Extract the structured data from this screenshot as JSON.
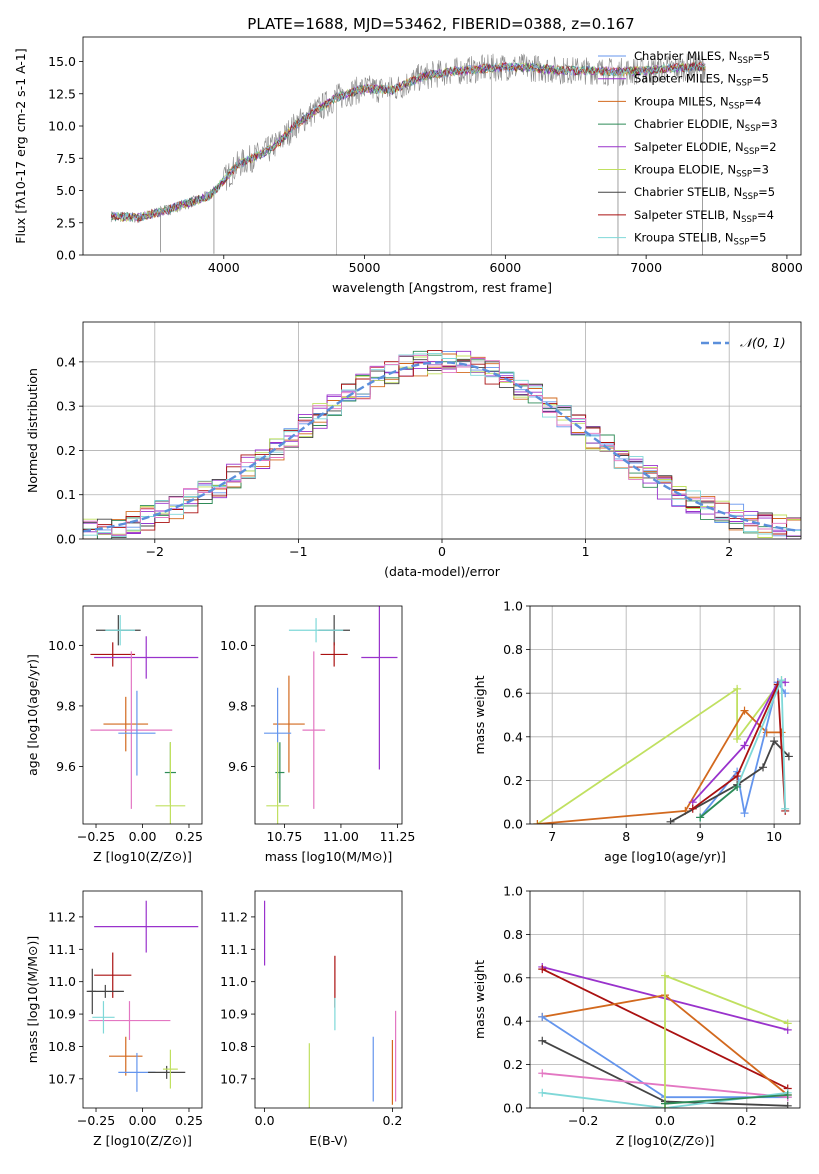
{
  "figure": {
    "title": "PLATE=1688, MJD=53462, FIBERID=0388, z=0.167"
  },
  "colors": {
    "Chabrier MILES": "#6495ed",
    "Salpeter MILES": "#9932cc",
    "Kroupa MILES": "#d2691e",
    "Chabrier ELODIE": "#2e8b57",
    "Salpeter ELODIE": "#9932cc",
    "Kroupa ELODIE": "#c0e060",
    "Chabrier STELIB": "#444444",
    "Salpeter STELIB": "#aa1111",
    "Kroupa STELIB": "#7fd8d8",
    "pink": "#e377c2",
    "gauss": "#5b8fdb",
    "data": "#888888"
  },
  "chart_data": [
    {
      "id": "spectrum",
      "type": "line",
      "xlabel": "wavelength [Angstrom, rest frame]",
      "ylabel": "Flux [f$_\\lambda$10$^{-17}$ erg cm$^{-2}$ s$^{-1}$ A$^{-1}$]",
      "xlim": [
        3000,
        8100
      ],
      "ylim": [
        0,
        16.9
      ],
      "xticks": [
        4000,
        5000,
        6000,
        7000,
        8000
      ],
      "yticks": [
        0.0,
        2.5,
        5.0,
        7.5,
        10.0,
        12.5,
        15.0
      ],
      "ytick_labels": [
        "0.0",
        "2.5",
        "5.0",
        "7.5",
        "10.0",
        "12.5",
        "15.0"
      ],
      "legend_position": "top-right",
      "legend": [
        {
          "name": "Chabrier MILES, N",
          "sub": "SSP",
          "val": "=5",
          "color": "#6495ed"
        },
        {
          "name": "Salpeter MILES, N",
          "sub": "SSP",
          "val": "=5",
          "color": "#9932cc"
        },
        {
          "name": "Kroupa MILES, N",
          "sub": "SSP",
          "val": "=4",
          "color": "#d2691e"
        },
        {
          "name": "Chabrier ELODIE, N",
          "sub": "SSP",
          "val": "=3",
          "color": "#2e8b57"
        },
        {
          "name": "Salpeter ELODIE, N",
          "sub": "SSP",
          "val": "=2",
          "color": "#9932cc"
        },
        {
          "name": "Kroupa ELODIE, N",
          "sub": "SSP",
          "val": "=3",
          "color": "#c0e060"
        },
        {
          "name": "Chabrier STELIB, N",
          "sub": "SSP",
          "val": "=5",
          "color": "#444444"
        },
        {
          "name": "Salpeter STELIB, N",
          "sub": "SSP",
          "val": "=4",
          "color": "#aa1111"
        },
        {
          "name": "Kroupa STELIB, N",
          "sub": "SSP",
          "val": "=5",
          "color": "#7fd8d8"
        }
      ],
      "model_trend": [
        [
          3200,
          3.0
        ],
        [
          3400,
          2.9
        ],
        [
          3600,
          3.5
        ],
        [
          3800,
          4.2
        ],
        [
          3900,
          4.6
        ],
        [
          4000,
          5.8
        ],
        [
          4100,
          7.0
        ],
        [
          4200,
          7.5
        ],
        [
          4300,
          8.0
        ],
        [
          4400,
          8.8
        ],
        [
          4500,
          10.0
        ],
        [
          4600,
          10.8
        ],
        [
          4700,
          11.5
        ],
        [
          4800,
          12.2
        ],
        [
          4900,
          12.6
        ],
        [
          5000,
          12.9
        ],
        [
          5200,
          12.8
        ],
        [
          5400,
          13.8
        ],
        [
          5600,
          14.2
        ],
        [
          5800,
          14.4
        ],
        [
          6000,
          14.6
        ],
        [
          6200,
          14.5
        ],
        [
          6400,
          14.3
        ],
        [
          6600,
          14.3
        ],
        [
          6800,
          14.2
        ],
        [
          7000,
          14.3
        ],
        [
          7200,
          14.5
        ],
        [
          7400,
          14.6
        ]
      ],
      "dips": [
        [
          3550,
          0.2
        ],
        [
          3930,
          0.1
        ],
        [
          6800,
          0.0
        ],
        [
          7400,
          0.0
        ]
      ],
      "spikes": [
        [
          4800,
          0.0
        ],
        [
          5180,
          0.0
        ],
        [
          5900,
          0.0
        ]
      ]
    },
    {
      "id": "residuals",
      "type": "line",
      "xlabel": "(data-model)/error",
      "ylabel": "Normed distribution",
      "xlim": [
        -2.5,
        2.5
      ],
      "ylim": [
        0,
        0.49
      ],
      "xticks": [
        -2,
        -1,
        0,
        1,
        2
      ],
      "xtick_labels": [
        "−2",
        "−1",
        "0",
        "1",
        "2"
      ],
      "yticks": [
        0.0,
        0.1,
        0.2,
        0.3,
        0.4
      ],
      "ytick_labels": [
        "0.0",
        "0.1",
        "0.2",
        "0.3",
        "0.4"
      ],
      "legend_label": "𝒩(0, 1)",
      "legend_position": "top-right",
      "bin_width": 0.1
    },
    {
      "id": "age_vs_Z",
      "type": "scatter",
      "xlabel": "Z [log$_{10}$($Z/Z_\\odot$)]",
      "ylabel": "age  [log$_{10}$($age/yr$)]",
      "xlim": [
        -0.32,
        0.32
      ],
      "ylim": [
        9.41,
        10.13
      ],
      "xticks": [
        -0.25,
        0.0,
        0.25
      ],
      "xtick_labels": [
        "−0.25",
        "0.00",
        "0.25"
      ],
      "yticks": [
        9.6,
        9.8,
        10.0
      ],
      "ytick_labels": [
        "9.6",
        "9.8",
        "10.0"
      ],
      "points": [
        {
          "x": -0.13,
          "y": 10.05,
          "xerr": 0.12,
          "yerr": 0.05,
          "color": "#444444"
        },
        {
          "x": -0.12,
          "y": 10.05,
          "xerr": 0.08,
          "yerr": 0.05,
          "color": "#7fd8d8"
        },
        {
          "x": -0.16,
          "y": 9.97,
          "xerr": 0.12,
          "yerr": 0.04,
          "color": "#aa1111"
        },
        {
          "x": 0.02,
          "y": 9.96,
          "xerr": 0.28,
          "yerr": 0.07,
          "color": "#9932cc"
        },
        {
          "x": -0.09,
          "y": 9.74,
          "xerr": 0.12,
          "yerr": 0.09,
          "color": "#d2691e"
        },
        {
          "x": -0.06,
          "y": 9.72,
          "xerr": 0.22,
          "yerr": 0.26,
          "color": "#e377c2"
        },
        {
          "x": -0.03,
          "y": 9.71,
          "xerr": 0.1,
          "yerr": 0.14,
          "color": "#6495ed"
        },
        {
          "x": 0.15,
          "y": 9.58,
          "xerr": 0.03,
          "yerr": 0.1,
          "color": "#2e8b57"
        },
        {
          "x": 0.15,
          "y": 9.47,
          "xerr": 0.08,
          "yerr": 0.21,
          "color": "#c0e060"
        }
      ]
    },
    {
      "id": "age_vs_mass",
      "type": "scatter",
      "xlabel": "mass [log$_{10}$($M/M_\\odot$)]",
      "ylabel": "",
      "xlim": [
        10.62,
        11.27
      ],
      "ylim": [
        9.41,
        10.13
      ],
      "xticks": [
        10.75,
        11.0,
        11.25
      ],
      "xtick_labels": [
        "10.75",
        "11.00",
        "11.25"
      ],
      "yticks": [
        9.6,
        9.8,
        10.0
      ],
      "ytick_labels": [
        "9.6",
        "9.8",
        "10.0"
      ],
      "points": [
        {
          "x": 10.97,
          "y": 10.05,
          "xerr": 0.07,
          "yerr": 0.05,
          "color": "#444444"
        },
        {
          "x": 10.89,
          "y": 10.05,
          "xerr": 0.12,
          "yerr": 0.04,
          "color": "#7fd8d8"
        },
        {
          "x": 10.97,
          "y": 9.97,
          "xerr": 0.06,
          "yerr": 0.04,
          "color": "#aa1111"
        },
        {
          "x": 11.17,
          "y": 9.96,
          "xerr": 0.08,
          "yerr": 0.37,
          "color": "#9932cc"
        },
        {
          "x": 10.77,
          "y": 9.74,
          "xerr": 0.07,
          "yerr": 0.16,
          "color": "#d2691e"
        },
        {
          "x": 10.88,
          "y": 9.72,
          "xerr": 0.05,
          "yerr": 0.26,
          "color": "#e377c2"
        },
        {
          "x": 10.72,
          "y": 9.71,
          "xerr": 0.06,
          "yerr": 0.15,
          "color": "#6495ed"
        },
        {
          "x": 10.73,
          "y": 9.58,
          "xerr": 0.02,
          "yerr": 0.1,
          "color": "#2e8b57"
        },
        {
          "x": 10.72,
          "y": 9.47,
          "xerr": 0.05,
          "yerr": 0.21,
          "color": "#c0e060"
        }
      ]
    },
    {
      "id": "weight_vs_age",
      "type": "line",
      "xlabel": "age  [log$_{10}$($age/yr$)]",
      "ylabel": "mass weight",
      "xlim": [
        6.7,
        10.35
      ],
      "ylim": [
        0,
        1.0
      ],
      "xticks": [
        7,
        8,
        9,
        10
      ],
      "xtick_labels": [
        "7",
        "8",
        "9",
        "10"
      ],
      "yticks": [
        0.0,
        0.2,
        0.4,
        0.6,
        0.8,
        1.0
      ],
      "ytick_labels": [
        "0.0",
        "0.2",
        "0.4",
        "0.6",
        "0.8",
        "1.0"
      ],
      "series": [
        {
          "color": "#c0e060",
          "x": [
            6.8,
            9.5,
            9.5,
            10.1
          ],
          "y": [
            0.0,
            0.62,
            0.39,
            0.66
          ]
        },
        {
          "color": "#d2691e",
          "x": [
            6.8,
            8.8,
            9.6,
            9.9,
            10.1
          ],
          "y": [
            0.0,
            0.06,
            0.52,
            0.42,
            0.42
          ]
        },
        {
          "color": "#9932cc",
          "x": [
            8.9,
            9.6,
            10.05,
            10.15
          ],
          "y": [
            0.1,
            0.36,
            0.65,
            0.65
          ]
        },
        {
          "color": "#6495ed",
          "x": [
            9.0,
            9.5,
            9.6,
            10.05,
            10.15
          ],
          "y": [
            0.03,
            0.24,
            0.05,
            0.65,
            0.6
          ]
        },
        {
          "color": "#444444",
          "x": [
            8.6,
            9.5,
            9.85,
            10.0,
            10.2
          ],
          "y": [
            0.01,
            0.18,
            0.26,
            0.38,
            0.31
          ]
        },
        {
          "color": "#aa1111",
          "x": [
            8.9,
            9.5,
            10.05,
            10.15
          ],
          "y": [
            0.07,
            0.22,
            0.64,
            0.06
          ]
        },
        {
          "color": "#7fd8d8",
          "x": [
            9.0,
            9.5,
            10.1,
            10.15
          ],
          "y": [
            0.03,
            0.17,
            0.66,
            0.07
          ]
        },
        {
          "color": "#2e8b57",
          "x": [
            9.0,
            9.5
          ],
          "y": [
            0.03,
            0.17
          ]
        }
      ]
    },
    {
      "id": "mass_vs_Z",
      "type": "scatter",
      "xlabel": "Z [log$_{10}$($Z/Z_\\odot$)]",
      "ylabel": "mass [log$_{10}$($M/M_\\odot$)]",
      "xlim": [
        -0.32,
        0.32
      ],
      "ylim": [
        10.61,
        11.28
      ],
      "xticks": [
        -0.25,
        0.0,
        0.25
      ],
      "xtick_labels": [
        "−0.25",
        "0.00",
        "0.25"
      ],
      "yticks": [
        10.7,
        10.8,
        10.9,
        11.0,
        11.1,
        11.2
      ],
      "ytick_labels": [
        "10.7",
        "10.8",
        "10.9",
        "11.0",
        "11.1",
        "11.2"
      ],
      "points": [
        {
          "x": 0.02,
          "y": 11.17,
          "xerr": 0.28,
          "yerr": 0.08,
          "color": "#9932cc"
        },
        {
          "x": -0.16,
          "y": 11.02,
          "xerr": 0.1,
          "yerr": 0.07,
          "color": "#aa1111"
        },
        {
          "x": -0.27,
          "y": 10.97,
          "xerr": 0.02,
          "yerr": 0.07,
          "color": "#444444"
        },
        {
          "x": -0.2,
          "y": 10.97,
          "xerr": 0.1,
          "yerr": 0.02,
          "color": "#444444"
        },
        {
          "x": -0.07,
          "y": 10.88,
          "xerr": 0.22,
          "yerr": 0.06,
          "color": "#e377c2"
        },
        {
          "x": -0.21,
          "y": 10.89,
          "xerr": 0.06,
          "yerr": 0.05,
          "color": "#7fd8d8"
        },
        {
          "x": -0.09,
          "y": 10.77,
          "xerr": 0.09,
          "yerr": 0.06,
          "color": "#d2691e"
        },
        {
          "x": -0.03,
          "y": 10.72,
          "xerr": 0.1,
          "yerr": 0.06,
          "color": "#6495ed"
        },
        {
          "x": 0.13,
          "y": 10.72,
          "xerr": 0.1,
          "yerr": 0.02,
          "color": "#444444"
        },
        {
          "x": 0.15,
          "y": 10.73,
          "xerr": 0.04,
          "yerr": 0.06,
          "color": "#c0e060"
        }
      ]
    },
    {
      "id": "mass_vs_EBV",
      "type": "scatter",
      "xlabel": "E(B-V)",
      "ylabel": "",
      "xlim": [
        -0.015,
        0.215
      ],
      "ylim": [
        10.61,
        11.28
      ],
      "xticks": [
        0.0,
        0.2
      ],
      "xtick_labels": [
        "0.0",
        "0.2"
      ],
      "yticks": [
        10.7,
        10.8,
        10.9,
        11.0,
        11.1,
        11.2
      ],
      "ytick_labels": [
        "10.7",
        "10.8",
        "10.9",
        "11.0",
        "11.1",
        "11.2"
      ],
      "points": [
        {
          "x": 0.0,
          "y": 11.15,
          "xerr": 0.0,
          "yerr": 0.1,
          "color": "#9932cc"
        },
        {
          "x": 0.11,
          "y": 11.0,
          "xerr": 0.0,
          "yerr": 0.08,
          "color": "#aa1111"
        },
        {
          "x": 0.11,
          "y": 10.9,
          "xerr": 0.0,
          "yerr": 0.05,
          "color": "#7fd8d8"
        },
        {
          "x": 0.07,
          "y": 10.71,
          "xerr": 0.0,
          "yerr": 0.1,
          "color": "#c0e060"
        },
        {
          "x": 0.17,
          "y": 10.73,
          "xerr": 0.0,
          "yerr": 0.1,
          "color": "#6495ed"
        },
        {
          "x": 0.2,
          "y": 10.72,
          "xerr": 0.0,
          "yerr": 0.1,
          "color": "#d2691e"
        },
        {
          "x": 0.205,
          "y": 10.77,
          "xerr": 0.0,
          "yerr": 0.14,
          "color": "#e377c2"
        }
      ]
    },
    {
      "id": "weight_vs_Z",
      "type": "line",
      "xlabel": "Z [log$_{10}$($Z/Z_\\odot$)]",
      "ylabel": "mass weight",
      "xlim": [
        -0.33,
        0.33
      ],
      "ylim": [
        0,
        1.0
      ],
      "xticks": [
        -0.2,
        0.0,
        0.2
      ],
      "xtick_labels": [
        "−0.2",
        "0.0",
        "0.2"
      ],
      "yticks": [
        0.0,
        0.2,
        0.4,
        0.6,
        0.8,
        1.0
      ],
      "ytick_labels": [
        "0.0",
        "0.2",
        "0.4",
        "0.6",
        "0.8",
        "1.0"
      ],
      "series": [
        {
          "color": "#9932cc",
          "x": [
            -0.3,
            0.3
          ],
          "y": [
            0.65,
            0.36
          ]
        },
        {
          "color": "#aa1111",
          "x": [
            -0.3,
            0.3
          ],
          "y": [
            0.64,
            0.09
          ]
        },
        {
          "color": "#d2691e",
          "x": [
            -0.3,
            0.0,
            0.3
          ],
          "y": [
            0.42,
            0.52,
            0.06
          ]
        },
        {
          "color": "#6495ed",
          "x": [
            -0.3,
            0.0,
            0.3
          ],
          "y": [
            0.42,
            0.05,
            0.05
          ]
        },
        {
          "color": "#444444",
          "x": [
            -0.3,
            0.0,
            0.3
          ],
          "y": [
            0.31,
            0.03,
            0.01
          ]
        },
        {
          "color": "#e377c2",
          "x": [
            -0.3,
            0.3
          ],
          "y": [
            0.16,
            0.05
          ]
        },
        {
          "color": "#7fd8d8",
          "x": [
            -0.3,
            0.0,
            0.3
          ],
          "y": [
            0.07,
            0.0,
            0.07
          ]
        },
        {
          "color": "#c0e060",
          "x": [
            0.0,
            0.0,
            0.3
          ],
          "y": [
            0.0,
            0.61,
            0.39
          ]
        },
        {
          "color": "#2e8b57",
          "x": [
            0.0,
            0.3
          ],
          "y": [
            0.02,
            0.06
          ]
        }
      ]
    }
  ]
}
